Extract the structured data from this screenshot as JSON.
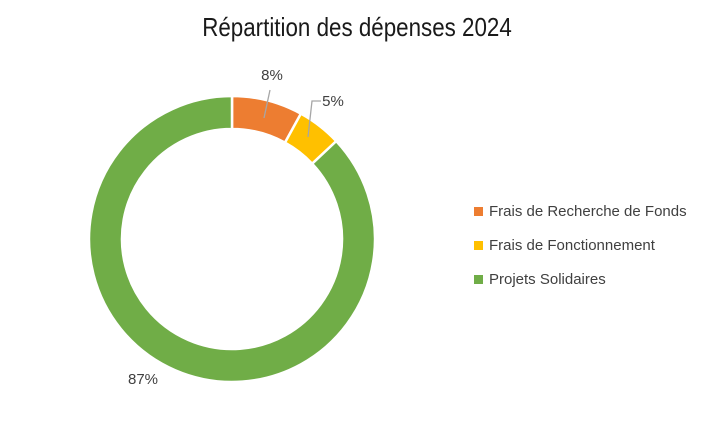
{
  "chart_data": {
    "type": "pie",
    "donut": true,
    "title": "Répartition des dépenses 2024",
    "legend_position": "right",
    "slices": [
      {
        "label": "Frais de Recherche de Fonds",
        "value": 8,
        "display": "8%",
        "color": "#ED7D31"
      },
      {
        "label": "Frais de Fonctionnement",
        "value": 5,
        "display": "5%",
        "color": "#FFC000"
      },
      {
        "label": "Projets Solidaires",
        "value": 87,
        "display": "87%",
        "color": "#70AD47"
      }
    ]
  }
}
